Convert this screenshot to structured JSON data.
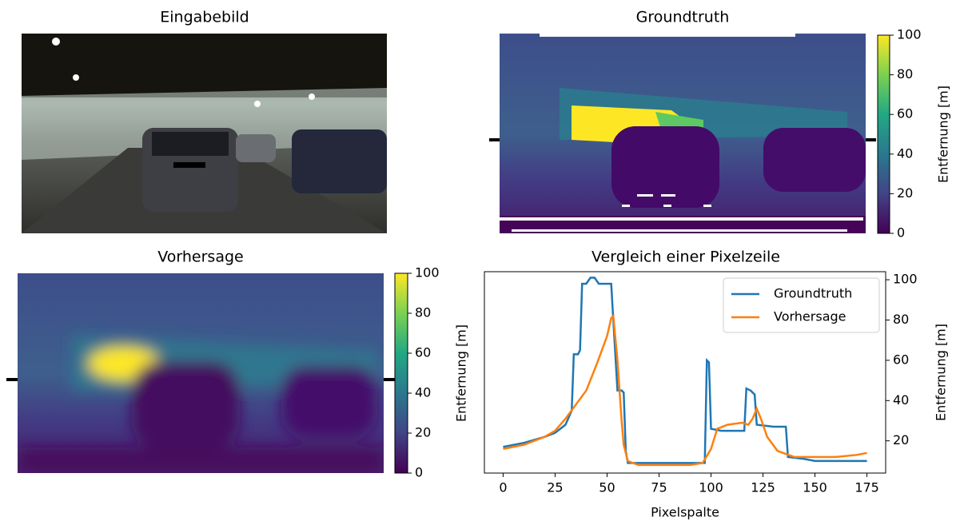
{
  "chart_data": [
    {
      "type": "image",
      "title": "Eingabebild"
    },
    {
      "type": "heatmap",
      "title": "Groundtruth",
      "colorbar_label": "Entfernung [m]",
      "clim": [
        0,
        100
      ],
      "cticks": [
        0,
        20,
        40,
        60,
        80,
        100
      ]
    },
    {
      "type": "heatmap",
      "title": "Vorhersage",
      "colorbar_label": "Entfernung [m]",
      "clim": [
        0,
        100
      ],
      "cticks": [
        0,
        20,
        40,
        60,
        80,
        100
      ]
    },
    {
      "type": "line",
      "title": "Vergleich einer Pixelzeile",
      "xlabel": "Pixelspalte",
      "ylabel": "Entfernung [m]",
      "xlim": [
        -9,
        184
      ],
      "ylim": [
        4,
        104
      ],
      "xticks": [
        0,
        25,
        50,
        75,
        100,
        125,
        150,
        175
      ],
      "yticks": [
        20,
        40,
        60,
        80,
        100
      ],
      "legend": "upper right",
      "series": [
        {
          "name": "Groundtruth",
          "color": "#1f77b4",
          "x": [
            0,
            10,
            20,
            25,
            30,
            33,
            34,
            36,
            37,
            38,
            40,
            42,
            44,
            46,
            52,
            53,
            55,
            57,
            58,
            59,
            60,
            70,
            80,
            90,
            97,
            98,
            99,
            100,
            105,
            110,
            116,
            117,
            119,
            121,
            122,
            130,
            136,
            137,
            145,
            150,
            160,
            175
          ],
          "values": [
            17,
            19,
            22,
            24,
            28,
            35,
            63,
            63,
            65,
            98,
            98,
            101,
            101,
            98,
            98,
            80,
            45,
            45,
            44,
            15,
            9,
            9,
            9,
            9,
            9,
            60,
            59,
            26,
            25,
            25,
            25,
            46,
            45,
            43,
            28,
            27,
            27,
            12,
            11,
            10,
            10,
            10
          ]
        },
        {
          "name": "Vorhersage",
          "color": "#ff7f0e",
          "x": [
            0,
            10,
            20,
            25,
            30,
            35,
            40,
            45,
            50,
            52,
            53,
            55,
            57,
            58,
            60,
            65,
            75,
            90,
            96,
            100,
            103,
            108,
            115,
            118,
            120,
            122,
            124,
            127,
            132,
            140,
            150,
            160,
            170,
            175
          ],
          "values": [
            16,
            18,
            22,
            25,
            31,
            38,
            45,
            58,
            72,
            81,
            82,
            60,
            30,
            18,
            10,
            8,
            8,
            8,
            9,
            16,
            26,
            28,
            29,
            28,
            31,
            36,
            31,
            22,
            15,
            12,
            12,
            12,
            13,
            14
          ]
        }
      ]
    }
  ]
}
